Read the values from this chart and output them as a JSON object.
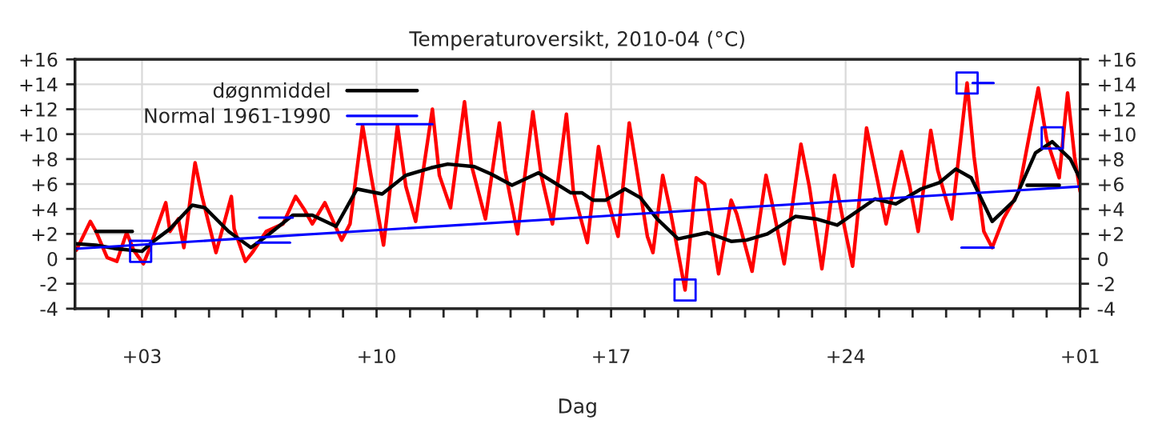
{
  "chart_data": {
    "type": "line",
    "title": "Temperaturoversikt, 2010-04 (°C)",
    "xlabel": "Dag",
    "xlim": [
      "2010-04-01",
      "2010-05-01"
    ],
    "xticks": [
      {
        "value": "2010-04-02",
        "label": null
      },
      {
        "value": "2010-04-03",
        "label": "+03"
      },
      {
        "value": "2010-04-04",
        "label": null
      },
      {
        "value": "2010-04-05",
        "label": null
      },
      {
        "value": "2010-04-06",
        "label": null
      },
      {
        "value": "2010-04-07",
        "label": null
      },
      {
        "value": "2010-04-08",
        "label": null
      },
      {
        "value": "2010-04-09",
        "label": null
      },
      {
        "value": "2010-04-10",
        "label": "+10"
      },
      {
        "value": "2010-04-11",
        "label": null
      },
      {
        "value": "2010-04-12",
        "label": null
      },
      {
        "value": "2010-04-13",
        "label": null
      },
      {
        "value": "2010-04-14",
        "label": null
      },
      {
        "value": "2010-04-15",
        "label": null
      },
      {
        "value": "2010-04-16",
        "label": null
      },
      {
        "value": "2010-04-17",
        "label": "+17"
      },
      {
        "value": "2010-04-18",
        "label": null
      },
      {
        "value": "2010-04-19",
        "label": null
      },
      {
        "value": "2010-04-20",
        "label": null
      },
      {
        "value": "2010-04-21",
        "label": null
      },
      {
        "value": "2010-04-22",
        "label": null
      },
      {
        "value": "2010-04-23",
        "label": null
      },
      {
        "value": "2010-04-24",
        "label": "+24"
      },
      {
        "value": "2010-04-25",
        "label": null
      },
      {
        "value": "2010-04-26",
        "label": null
      },
      {
        "value": "2010-04-27",
        "label": null
      },
      {
        "value": "2010-04-28",
        "label": null
      },
      {
        "value": "2010-04-29",
        "label": null
      },
      {
        "value": "2010-04-30",
        "label": null
      },
      {
        "value": "2010-05-01",
        "label": "+01"
      }
    ],
    "ylim": [
      -4,
      16
    ],
    "yticks": [
      {
        "value": -4,
        "label": "-4"
      },
      {
        "value": -2,
        "label": "-2"
      },
      0,
      {
        "value": 2,
        "label": "+2"
      },
      {
        "value": 4,
        "label": "+4"
      },
      {
        "value": 6,
        "label": "+6"
      },
      {
        "value": 8,
        "label": "+8"
      },
      {
        "value": 10,
        "label": "+10"
      },
      {
        "value": 12,
        "label": "+12"
      },
      {
        "value": 14,
        "label": "+14"
      },
      {
        "value": 16,
        "label": "+16"
      }
    ],
    "y2lim": [
      -4,
      16
    ],
    "y2ticks": [
      {
        "value": -4,
        "label": "-4"
      },
      {
        "value": -2,
        "label": "-2"
      },
      0,
      {
        "value": 2,
        "label": "+2"
      },
      {
        "value": 4,
        "label": "+4"
      },
      {
        "value": 6,
        "label": "+6"
      },
      {
        "value": 8,
        "label": "+8"
      },
      {
        "value": 10,
        "label": "+10"
      },
      {
        "value": 12,
        "label": "+12"
      },
      {
        "value": 14,
        "label": "+14"
      },
      {
        "value": 16,
        "label": "+16"
      }
    ],
    "grid": true,
    "legend": "top left",
    "series": [
      {
        "type": "line",
        "color": "#ff0000",
        "marker": "none",
        "x": [
          "2010-04-01T01:00",
          "2010-04-01T11:00",
          "2010-04-01T15:00",
          "2010-04-01T23:00",
          "2010-04-02T06:00",
          "2010-04-02T13:00",
          "2010-04-02T18:00",
          "2010-04-03T01:00",
          "2010-04-03T05:00",
          "2010-04-03T17:00",
          "2010-04-03T20:00",
          "2010-04-04T02:00",
          "2010-04-04T06:00",
          "2010-04-04T14:00",
          "2010-04-04T19:00",
          "2010-04-05T05:00",
          "2010-04-05T16:00",
          "2010-04-05T18:00",
          "2010-04-06T02:00",
          "2010-04-06T07:00",
          "2010-04-06T17:00",
          "2010-04-07T05:00",
          "2010-04-07T14:00",
          "2010-04-07T20:00",
          "2010-04-08T02:00",
          "2010-04-08T11:00",
          "2010-04-08T23:00",
          "2010-04-09T05:00",
          "2010-04-09T14:00",
          "2010-04-09T20:00",
          "2010-04-10T05:00",
          "2010-04-10T15:00",
          "2010-04-10T21:00",
          "2010-04-11T04:00",
          "2010-04-11T16:00",
          "2010-04-11T21:00",
          "2010-04-12T05:00",
          "2010-04-12T15:00",
          "2010-04-12T20:00",
          "2010-04-13T06:00",
          "2010-04-13T16:00",
          "2010-04-13T20:00",
          "2010-04-14T05:00",
          "2010-04-14T16:00",
          "2010-04-14T22:00",
          "2010-04-15T06:00",
          "2010-04-15T16:00",
          "2010-04-15T21:00",
          "2010-04-16T07:00",
          "2010-04-16T15:00",
          "2010-04-16T22:00",
          "2010-04-17T05:00",
          "2010-04-17T13:00",
          "2010-04-17T19:00",
          "2010-04-18T02:00",
          "2010-04-18T06:00",
          "2010-04-18T13:00",
          "2010-04-18T18:00",
          "2010-04-19T05:00",
          "2010-04-19T13:00",
          "2010-04-19T19:00",
          "2010-04-20T05:00",
          "2010-04-20T14:00",
          "2010-04-20T18:00",
          "2010-04-21T05:00",
          "2010-04-21T15:00",
          "2010-04-21T20:00",
          "2010-04-22T04:00",
          "2010-04-22T16:00",
          "2010-04-22T22:00",
          "2010-04-23T07:00",
          "2010-04-23T16:00",
          "2010-04-23T22:00",
          "2010-04-24T05:00",
          "2010-04-24T15:00",
          "2010-04-24T23:00",
          "2010-04-25T05:00",
          "2010-04-25T16:00",
          "2010-04-25T22:00",
          "2010-04-26T04:00",
          "2010-04-26T13:00",
          "2010-04-26T18:00",
          "2010-04-27T04:00",
          "2010-04-27T15:00",
          "2010-04-27T20:00",
          "2010-04-28T03:00",
          "2010-04-28T09:00",
          "2010-04-28T17:00",
          "2010-04-29T04:00",
          "2010-04-29T18:00",
          "2010-04-30T00:00",
          "2010-04-30T09:00",
          "2010-04-30T15:00",
          "2010-04-30T20:00",
          "2010-05-01T00:00"
        ],
        "values": [
          0.7,
          3.0,
          2.2,
          0.1,
          -0.2,
          2.1,
          0.7,
          -0.4,
          0.7,
          4.5,
          2.2,
          3.2,
          0.9,
          7.7,
          5.0,
          0.5,
          5.0,
          2.4,
          -0.2,
          0.5,
          2.2,
          2.8,
          5.0,
          4.0,
          2.8,
          4.5,
          1.5,
          2.8,
          10.7,
          6.7,
          1.1,
          10.7,
          5.8,
          3.0,
          12.0,
          6.7,
          4.1,
          12.6,
          7.5,
          3.2,
          10.9,
          7.1,
          2.0,
          11.8,
          6.7,
          2.8,
          11.6,
          5.4,
          1.3,
          9.0,
          4.6,
          1.8,
          10.9,
          6.7,
          1.8,
          0.5,
          6.7,
          4.1,
          -2.5,
          6.5,
          6.0,
          -1.2,
          4.7,
          3.6,
          -1.0,
          6.7,
          4.1,
          -0.4,
          9.2,
          5.8,
          -0.8,
          6.7,
          3.2,
          -0.6,
          10.5,
          6.2,
          2.8,
          8.6,
          5.8,
          2.2,
          10.3,
          7.1,
          3.2,
          14.1,
          8.2,
          2.2,
          0.9,
          3.2,
          5.4,
          13.7,
          9.6,
          6.5,
          13.3,
          8.2,
          5.4
        ]
      },
      {
        "type": "line",
        "name": "døgnmiddel",
        "color": "#000000",
        "marker": "none",
        "x": [
          "2010-04-01T01:00",
          "2010-04-01T15:00",
          "2010-04-02T06:00",
          "2010-04-03T00:00",
          "2010-04-03T07:00",
          "2010-04-03T20:00",
          "2010-04-04T12:00",
          "2010-04-04T21:00",
          "2010-04-05T14:00",
          "2010-04-06T06:00",
          "2010-04-06T17:00",
          "2010-04-07T12:00",
          "2010-04-08T02:00",
          "2010-04-08T19:00",
          "2010-04-09T10:00",
          "2010-04-10T04:00",
          "2010-04-10T21:00",
          "2010-04-11T15:00",
          "2010-04-12T03:00",
          "2010-04-12T22:00",
          "2010-04-13T10:00",
          "2010-04-14T01:00",
          "2010-04-14T20:00",
          "2010-04-15T19:00",
          "2010-04-16T03:00",
          "2010-04-16T11:00",
          "2010-04-16T20:00",
          "2010-04-17T10:00",
          "2010-04-17T21:00",
          "2010-04-18T09:00",
          "2010-04-19T00:00",
          "2010-04-19T21:00",
          "2010-04-20T14:00",
          "2010-04-21T01:00",
          "2010-04-21T16:00",
          "2010-04-22T12:00",
          "2010-04-23T03:00",
          "2010-04-23T18:00",
          "2010-04-24T21:00",
          "2010-04-25T12:00",
          "2010-04-26T06:00",
          "2010-04-26T19:00",
          "2010-04-27T07:00",
          "2010-04-27T18:00",
          "2010-04-28T09:00",
          "2010-04-29T01:00",
          "2010-04-29T16:00",
          "2010-04-30T04:00",
          "2010-04-30T17:00",
          "2010-05-01T00:00"
        ],
        "values": [
          1.2,
          1.1,
          0.8,
          0.6,
          1.3,
          2.4,
          4.3,
          4.1,
          2.2,
          0.9,
          1.8,
          3.5,
          3.5,
          2.6,
          5.6,
          5.2,
          6.7,
          7.3,
          7.6,
          7.4,
          6.8,
          5.9,
          6.9,
          5.3,
          5.3,
          4.7,
          4.7,
          5.6,
          4.9,
          3.2,
          1.6,
          2.1,
          1.4,
          1.5,
          2.0,
          3.4,
          3.2,
          2.7,
          4.8,
          4.4,
          5.6,
          6.1,
          7.2,
          6.5,
          3.0,
          4.7,
          8.5,
          9.4,
          8.0,
          6.4
        ]
      },
      {
        "type": "line",
        "name": "Normal 1961-1990",
        "color": "#0000ff",
        "marker": "none",
        "x": [
          "2010-04-01T00:00",
          "2010-05-01T00:00"
        ],
        "values": [
          0.8,
          5.8
        ]
      },
      {
        "type": "line",
        "color": "#000000",
        "marker": "none",
        "x": [
          "2010-04-01T15:00",
          "2010-04-02T17:00"
        ],
        "values": [
          2.2,
          2.2
        ]
      },
      {
        "type": "line",
        "color": "#000000",
        "marker": "none",
        "x": [
          "2010-04-29T10:00",
          "2010-04-30T09:00"
        ],
        "values": [
          5.9,
          5.9
        ]
      },
      {
        "type": "line",
        "color": "#0000ff",
        "marker": "none",
        "x": [
          "2010-04-06T12:00",
          "2010-04-07T12:00"
        ],
        "values": [
          3.3,
          3.3
        ]
      },
      {
        "type": "line",
        "color": "#0000ff",
        "marker": "none",
        "x": [
          "2010-04-06T10:00",
          "2010-04-07T10:00"
        ],
        "values": [
          1.3,
          1.3
        ]
      },
      {
        "type": "line",
        "color": "#0000ff",
        "marker": "none",
        "x": [
          "2010-04-09T10:00",
          "2010-04-11T16:00"
        ],
        "values": [
          10.8,
          10.8
        ]
      },
      {
        "type": "line",
        "color": "#0000ff",
        "marker": "none",
        "x": [
          "2010-04-27T19:00",
          "2010-04-28T10:00"
        ],
        "values": [
          14.1,
          14.1
        ]
      },
      {
        "type": "line",
        "color": "#0000ff",
        "marker": "none",
        "x": [
          "2010-04-27T11:00",
          "2010-04-28T10:00"
        ],
        "values": [
          0.9,
          0.9
        ]
      },
      {
        "type": "scatter",
        "color": "#0000ff",
        "marker": "square",
        "x": [
          "2010-04-02T23:00",
          "2010-04-19T05:00",
          "2010-04-27T15:00",
          "2010-04-30T04:00"
        ],
        "values": [
          0.6,
          -2.5,
          14.1,
          9.7
        ]
      }
    ]
  }
}
